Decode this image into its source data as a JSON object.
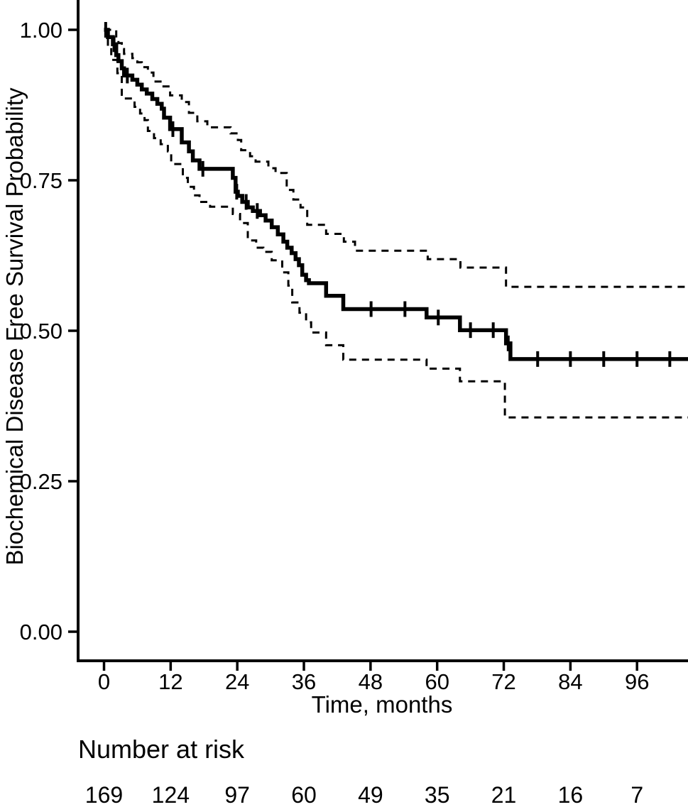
{
  "figure": {
    "background": "#ffffff",
    "ink_color": "#000000"
  },
  "chart_data": {
    "type": "line",
    "subtype": "kaplan-meier-step",
    "title": "",
    "xlabel": "Time, months",
    "ylabel": "Biochemical Disease Free Survival Probability",
    "xlim": [
      -4.9,
      105.3
    ],
    "ylim": [
      -0.05,
      1.05
    ],
    "grid": false,
    "legend_position": "none",
    "x_ticks": [
      {
        "value": 0,
        "label": "0"
      },
      {
        "value": 12,
        "label": "12"
      },
      {
        "value": 24,
        "label": "24"
      },
      {
        "value": 36,
        "label": "36"
      },
      {
        "value": 48,
        "label": "48"
      },
      {
        "value": 60,
        "label": "60"
      },
      {
        "value": 72,
        "label": "72"
      },
      {
        "value": 84,
        "label": "84"
      },
      {
        "value": 96,
        "label": "96"
      }
    ],
    "y_ticks": [
      {
        "value": 0.0,
        "label": "0.00"
      },
      {
        "value": 0.25,
        "label": "0.25"
      },
      {
        "value": 0.5,
        "label": "0.50"
      },
      {
        "value": 0.75,
        "label": "0.75"
      },
      {
        "value": 1.0,
        "label": "1.00"
      }
    ],
    "series": [
      {
        "name": "km-estimate",
        "line_style": "solid",
        "color": "#000000",
        "steps": [
          [
            0,
            1.0
          ],
          [
            0.7,
            0.988
          ],
          [
            1.6,
            0.976
          ],
          [
            2.2,
            0.958
          ],
          [
            2.6,
            0.948
          ],
          [
            3.2,
            0.936
          ],
          [
            3.6,
            0.924
          ],
          [
            5.1,
            0.917
          ],
          [
            6.0,
            0.909
          ],
          [
            6.8,
            0.901
          ],
          [
            7.7,
            0.894
          ],
          [
            8.7,
            0.885
          ],
          [
            9.6,
            0.877
          ],
          [
            10.4,
            0.869
          ],
          [
            10.8,
            0.854
          ],
          [
            11.9,
            0.835
          ],
          [
            14.0,
            0.813
          ],
          [
            15.3,
            0.798
          ],
          [
            16.0,
            0.783
          ],
          [
            17.2,
            0.769
          ],
          [
            23.2,
            0.754
          ],
          [
            23.7,
            0.731
          ],
          [
            24.1,
            0.724
          ],
          [
            24.9,
            0.714
          ],
          [
            25.9,
            0.705
          ],
          [
            26.8,
            0.699
          ],
          [
            28.1,
            0.692
          ],
          [
            29.1,
            0.683
          ],
          [
            30.2,
            0.672
          ],
          [
            31.3,
            0.66
          ],
          [
            32.3,
            0.648
          ],
          [
            33.0,
            0.638
          ],
          [
            33.8,
            0.629
          ],
          [
            34.5,
            0.619
          ],
          [
            35.1,
            0.609
          ],
          [
            35.7,
            0.593
          ],
          [
            36.4,
            0.584
          ],
          [
            36.9,
            0.579
          ],
          [
            40.0,
            0.558
          ],
          [
            43.1,
            0.536
          ],
          [
            58.1,
            0.522
          ],
          [
            64.1,
            0.501
          ],
          [
            72.4,
            0.479
          ],
          [
            73.2,
            0.453
          ]
        ],
        "censor_marks": [
          [
            0.3,
            1.0
          ],
          [
            1.8,
            0.976
          ],
          [
            4.2,
            0.924
          ],
          [
            12.4,
            0.835
          ],
          [
            17.8,
            0.769
          ],
          [
            23.9,
            0.731
          ],
          [
            25.6,
            0.714
          ],
          [
            27.6,
            0.699
          ],
          [
            48.1,
            0.536
          ],
          [
            54.2,
            0.536
          ],
          [
            60.2,
            0.522
          ],
          [
            66.0,
            0.501
          ],
          [
            70.1,
            0.501
          ],
          [
            72.8,
            0.479
          ],
          [
            78.1,
            0.453
          ],
          [
            84.0,
            0.453
          ],
          [
            90.0,
            0.453
          ],
          [
            96.0,
            0.453
          ],
          [
            101.9,
            0.453
          ]
        ]
      },
      {
        "name": "ci-upper",
        "line_style": "dashed",
        "color": "#000000",
        "steps": [
          [
            0,
            1.0
          ],
          [
            2.2,
            0.985
          ],
          [
            2.6,
            0.978
          ],
          [
            3.2,
            0.968
          ],
          [
            3.6,
            0.96
          ],
          [
            5.1,
            0.953
          ],
          [
            6.0,
            0.946
          ],
          [
            6.8,
            0.938
          ],
          [
            7.9,
            0.929
          ],
          [
            8.9,
            0.914
          ],
          [
            10.4,
            0.906
          ],
          [
            11.9,
            0.891
          ],
          [
            14.0,
            0.88
          ],
          [
            15.3,
            0.862
          ],
          [
            16.8,
            0.848
          ],
          [
            18.6,
            0.838
          ],
          [
            22.8,
            0.828
          ],
          [
            24.1,
            0.817
          ],
          [
            24.7,
            0.8
          ],
          [
            26.3,
            0.79
          ],
          [
            27.3,
            0.781
          ],
          [
            29.6,
            0.77
          ],
          [
            30.9,
            0.762
          ],
          [
            32.9,
            0.734
          ],
          [
            34.1,
            0.718
          ],
          [
            35.4,
            0.705
          ],
          [
            36.6,
            0.676
          ],
          [
            40.0,
            0.661
          ],
          [
            43.2,
            0.648
          ],
          [
            45.2,
            0.633
          ],
          [
            58.3,
            0.619
          ],
          [
            64.2,
            0.605
          ],
          [
            72.4,
            0.573
          ]
        ],
        "censor_marks": []
      },
      {
        "name": "ci-lower",
        "line_style": "dashed",
        "color": "#000000",
        "steps": [
          [
            0,
            1.0
          ],
          [
            0.7,
            0.97
          ],
          [
            1.3,
            0.95
          ],
          [
            2.4,
            0.928
          ],
          [
            3.2,
            0.886
          ],
          [
            5.5,
            0.872
          ],
          [
            6.5,
            0.861
          ],
          [
            7.3,
            0.85
          ],
          [
            7.9,
            0.832
          ],
          [
            9.0,
            0.82
          ],
          [
            10.2,
            0.81
          ],
          [
            11.5,
            0.798
          ],
          [
            12.1,
            0.777
          ],
          [
            14.2,
            0.754
          ],
          [
            15.1,
            0.739
          ],
          [
            16.2,
            0.725
          ],
          [
            17.2,
            0.714
          ],
          [
            19.1,
            0.706
          ],
          [
            23.2,
            0.694
          ],
          [
            24.5,
            0.679
          ],
          [
            25.9,
            0.65
          ],
          [
            27.4,
            0.638
          ],
          [
            28.7,
            0.631
          ],
          [
            30.2,
            0.617
          ],
          [
            32.1,
            0.597
          ],
          [
            33.2,
            0.575
          ],
          [
            33.9,
            0.547
          ],
          [
            35.2,
            0.53
          ],
          [
            36.4,
            0.514
          ],
          [
            37.3,
            0.497
          ],
          [
            40.0,
            0.476
          ],
          [
            43.1,
            0.452
          ],
          [
            58.1,
            0.437
          ],
          [
            64.1,
            0.416
          ],
          [
            72.2,
            0.356
          ]
        ],
        "censor_marks": []
      }
    ]
  },
  "risk_table": {
    "title": "Number at risk",
    "times": [
      0,
      12,
      24,
      36,
      48,
      60,
      72,
      84,
      96
    ],
    "values": [
      169,
      124,
      97,
      60,
      49,
      35,
      21,
      16,
      7
    ]
  }
}
